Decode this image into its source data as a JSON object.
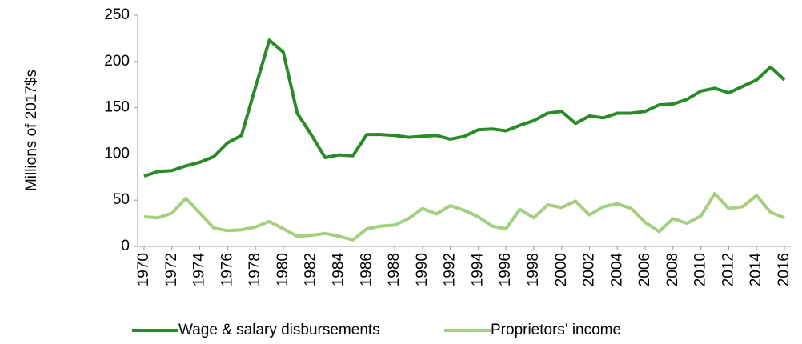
{
  "chart_data": {
    "type": "line",
    "y_label": "Millions of 2017$s",
    "x": [
      1970,
      1971,
      1972,
      1973,
      1974,
      1975,
      1976,
      1977,
      1978,
      1979,
      1980,
      1981,
      1982,
      1983,
      1984,
      1985,
      1986,
      1987,
      1988,
      1989,
      1990,
      1991,
      1992,
      1993,
      1994,
      1995,
      1996,
      1997,
      1998,
      1999,
      2000,
      2001,
      2002,
      2003,
      2004,
      2005,
      2006,
      2007,
      2008,
      2009,
      2010,
      2011,
      2012,
      2013,
      2014,
      2015,
      2016
    ],
    "series": [
      {
        "name": "Wage & salary disbursements",
        "color": "#2a8a2a",
        "values": [
          76,
          81,
          82,
          87,
          91,
          97,
          112,
          120,
          172,
          223,
          210,
          144,
          121,
          96,
          99,
          98,
          121,
          121,
          120,
          118,
          119,
          120,
          116,
          119,
          126,
          127,
          125,
          131,
          136,
          144,
          146,
          133,
          141,
          139,
          144,
          144,
          146,
          153,
          154,
          159,
          168,
          171,
          166,
          173,
          180,
          194,
          180
        ]
      },
      {
        "name": "Proprietors' income",
        "color": "#a3d07f",
        "values": [
          32,
          31,
          36,
          52,
          36,
          20,
          17,
          18,
          21,
          27,
          19,
          11,
          12,
          14,
          11,
          7,
          19,
          22,
          23,
          30,
          41,
          35,
          44,
          39,
          32,
          22,
          19,
          40,
          31,
          45,
          42,
          49,
          34,
          43,
          46,
          41,
          26,
          16,
          30,
          25,
          33,
          57,
          41,
          43,
          55,
          37,
          31
        ]
      }
    ],
    "xlim": [
      1970,
      2016
    ],
    "xticks": [
      1970,
      1972,
      1974,
      1976,
      1978,
      1980,
      1982,
      1984,
      1986,
      1988,
      1990,
      1992,
      1994,
      1996,
      1998,
      2000,
      2002,
      2004,
      2006,
      2008,
      2010,
      2012,
      2014,
      2016
    ],
    "ylim": [
      0,
      250
    ],
    "yticks": [
      0,
      50,
      100,
      150,
      200,
      250
    ],
    "grid": false,
    "legend": "bottom"
  }
}
